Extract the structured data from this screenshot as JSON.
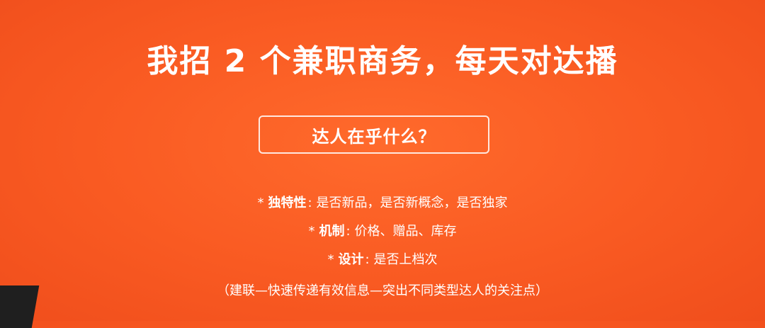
{
  "watermark": "(partial, illegible)",
  "title": "我招 2 个兼职商务，每天对达播",
  "question": "达人在乎什么？",
  "points": [
    {
      "bullet": "*",
      "key": "独特性",
      "sep": ":",
      "value": "是否新品，是否新概念，是否独家"
    },
    {
      "bullet": "*",
      "key": "机制",
      "sep": ":",
      "value": "价格、赠品、库存"
    },
    {
      "bullet": "*",
      "key": "设计",
      "sep": ":",
      "value": "是否上档次"
    }
  ],
  "note": "（建联—快速传递有效信息—突出不同类型达人的关注点）",
  "colors": {
    "background": "#f95a22",
    "text": "#ffffff",
    "corner": "#1f1f1f"
  }
}
